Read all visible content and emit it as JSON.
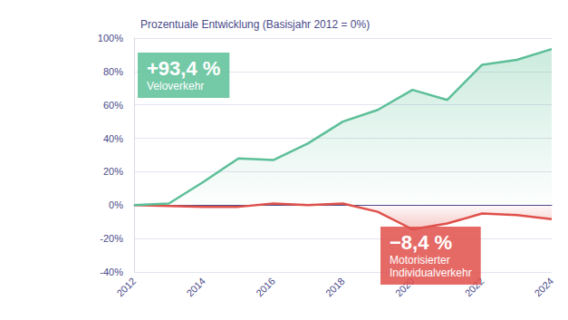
{
  "chart_data": {
    "type": "line",
    "title": "Prozentuale Entwicklung (Basisjahr 2012 = 0%)",
    "x": [
      2012,
      2013,
      2014,
      2015,
      2016,
      2017,
      2018,
      2019,
      2020,
      2021,
      2022,
      2023,
      2024
    ],
    "xlim": [
      2012,
      2024
    ],
    "xticks": [
      2012,
      2014,
      2016,
      2018,
      2020,
      2022,
      2024
    ],
    "ylim": [
      -40,
      100
    ],
    "yticks": [
      {
        "value": -40,
        "label": "-40%"
      },
      {
        "value": -20,
        "label": "-20%"
      },
      {
        "value": 0,
        "label": "0%"
      },
      {
        "value": 20,
        "label": "20%"
      },
      {
        "value": 40,
        "label": "40%"
      },
      {
        "value": 60,
        "label": "60%"
      },
      {
        "value": 80,
        "label": "80%"
      },
      {
        "value": 100,
        "label": "100%"
      }
    ],
    "grid": true,
    "series": [
      {
        "name": "Veloverkehr",
        "color": "#5cbf98",
        "annotation": "+93,4 %",
        "values": [
          0,
          1,
          14,
          28,
          27,
          37,
          50,
          57,
          69,
          63,
          84,
          87,
          93.4
        ]
      },
      {
        "name": "Motorisierter Individualverkehr",
        "color": "#e0504b",
        "annotation": "−8,4 %",
        "values": [
          0,
          -0.5,
          -1,
          -1,
          1,
          0,
          1,
          -4,
          -14.5,
          -11,
          -5,
          -6,
          -8.4
        ]
      }
    ]
  }
}
